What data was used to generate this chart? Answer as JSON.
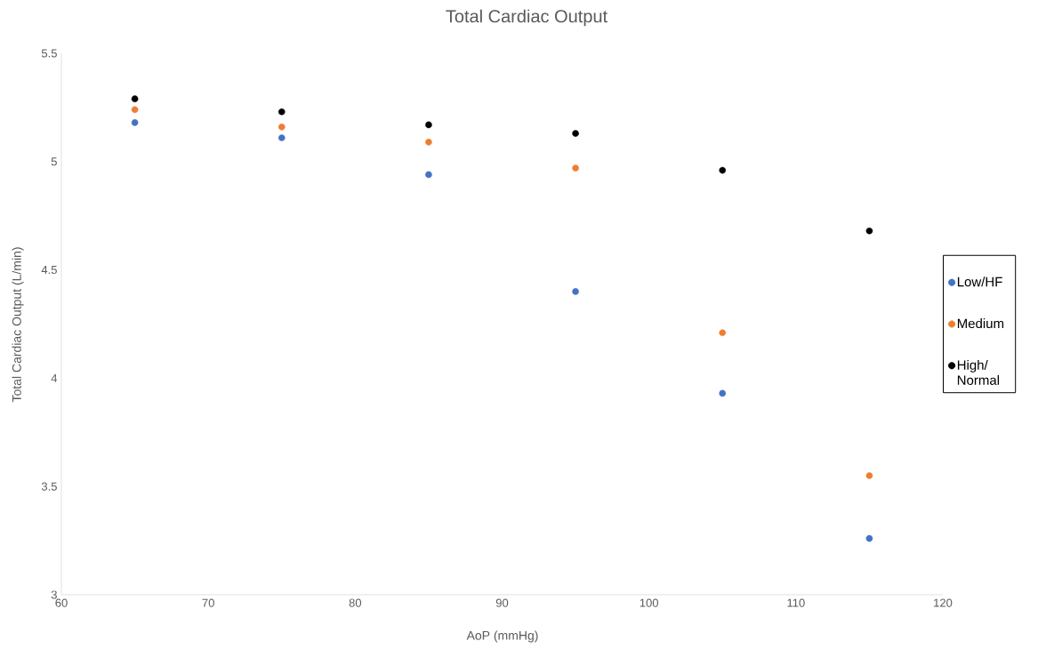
{
  "chart_data": {
    "type": "scatter",
    "title": "Total Cardiac Output",
    "xlabel": "AoP (mmHg)",
    "ylabel": "Total Cardiac Output (L/min)",
    "x": [
      65,
      75,
      85,
      95,
      105,
      115
    ],
    "series": [
      {
        "name": "Low/HF",
        "color": "#4472c4",
        "values": [
          5.18,
          5.11,
          4.94,
          4.4,
          3.93,
          3.26
        ]
      },
      {
        "name": "Medium",
        "color": "#ed7d31",
        "values": [
          5.24,
          5.16,
          5.09,
          4.97,
          4.21,
          3.55
        ]
      },
      {
        "name": "High/ Normal",
        "color": "#000000",
        "values": [
          5.29,
          5.23,
          5.17,
          5.13,
          4.96,
          4.68
        ]
      }
    ],
    "xlim": [
      60,
      120
    ],
    "xticks": [
      60,
      70,
      80,
      90,
      100,
      110,
      120
    ],
    "ylim": [
      3,
      5.5
    ],
    "yticks": [
      3,
      3.5,
      4,
      4.5,
      5,
      5.5
    ],
    "grid": false,
    "legend": "right",
    "marker": "circle"
  }
}
